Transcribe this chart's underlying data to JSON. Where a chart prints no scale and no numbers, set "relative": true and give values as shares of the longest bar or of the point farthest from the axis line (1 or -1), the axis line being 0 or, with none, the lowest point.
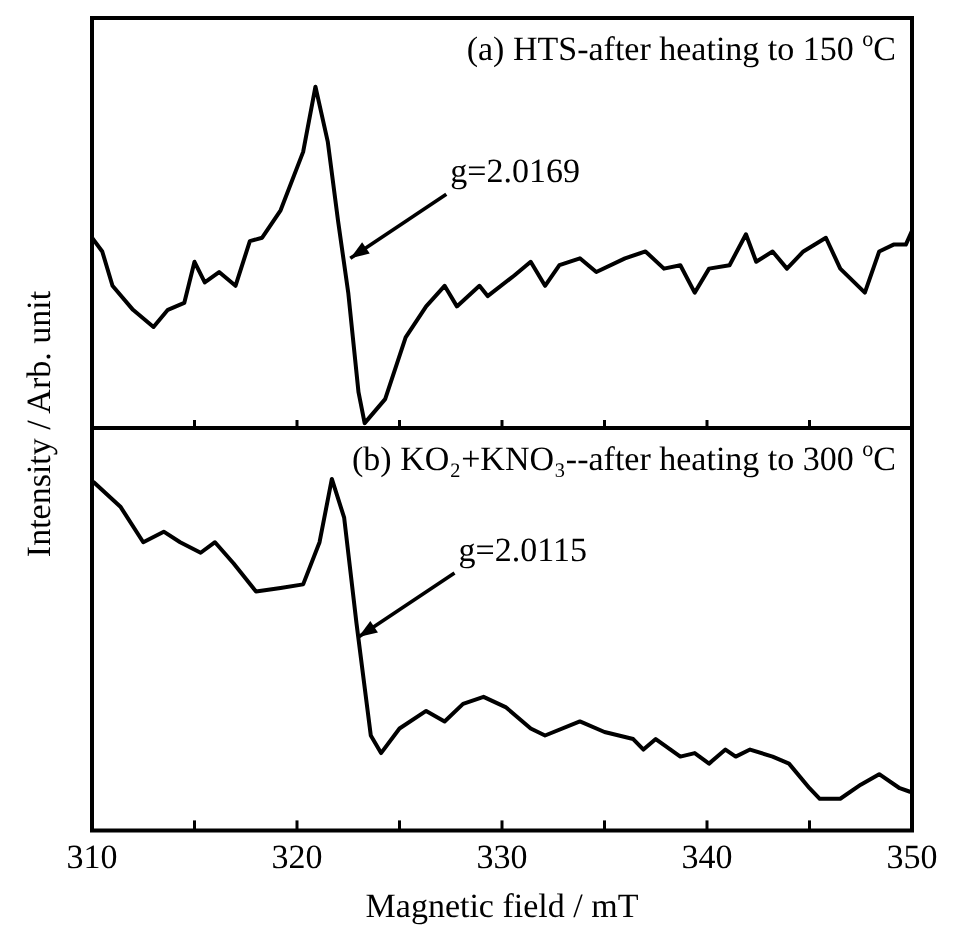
{
  "chart_data": [
    {
      "type": "line",
      "title": "(a) HTS-after heating to 150 $^{o}$C",
      "ylabel": "Intensity / Arb. unit",
      "relative": true,
      "tick_labels": false,
      "marker": "none",
      "color": "#000000",
      "xlim": [
        310,
        350
      ],
      "xticks": [
        310,
        {
          "value": 315,
          "label": null
        },
        320,
        {
          "value": 325,
          "label": null
        },
        330,
        {
          "value": 335,
          "label": null
        },
        340,
        {
          "value": 345,
          "label": null
        },
        350
      ],
      "x": [
        310,
        310.5,
        311,
        312,
        313,
        313.7,
        314.5,
        315,
        315.5,
        316.2,
        317,
        317.7,
        318.3,
        319.2,
        320.3,
        320.9,
        321.5,
        322,
        322.5,
        323,
        323.3,
        324.3,
        325.3,
        326.3,
        327.2,
        327.8,
        328.9,
        329.3,
        330.6,
        331.4,
        332.1,
        332.8,
        333.8,
        334.6,
        336,
        337,
        337.9,
        338.7,
        339.4,
        340.1,
        341.1,
        341.9,
        342.4,
        343.2,
        343.9,
        344.7,
        345.8,
        346.5,
        347.7,
        348.4,
        349.1,
        349.7,
        350
      ],
      "values": [
        0.56,
        0.52,
        0.42,
        0.35,
        0.3,
        0.35,
        0.37,
        0.49,
        0.43,
        0.46,
        0.42,
        0.55,
        0.56,
        0.64,
        0.81,
        1,
        0.84,
        0.61,
        0.4,
        0.11,
        0.02,
        0.09,
        0.27,
        0.36,
        0.42,
        0.36,
        0.42,
        0.39,
        0.45,
        0.49,
        0.42,
        0.48,
        0.5,
        0.46,
        0.5,
        0.52,
        0.47,
        0.48,
        0.4,
        0.47,
        0.48,
        0.57,
        0.49,
        0.52,
        0.47,
        0.52,
        0.56,
        0.47,
        0.4,
        0.52,
        0.54,
        0.54,
        0.58
      ],
      "annotations": [
        {
          "text": "g=2.0169",
          "x": 322.6,
          "y": 0.5
        }
      ]
    },
    {
      "type": "line",
      "title": "(b) KO₂+KNO₃--after heating to 300 $^{o}$C",
      "xlabel": "Magnetic field / mT",
      "relative": true,
      "tick_labels": "x",
      "marker": "none",
      "color": "#000000",
      "xlim": [
        310,
        350
      ],
      "xticks": [
        310,
        {
          "value": 315,
          "label": null
        },
        320,
        {
          "value": 325,
          "label": null
        },
        330,
        {
          "value": 335,
          "label": null
        },
        340,
        {
          "value": 345,
          "label": null
        },
        350
      ],
      "x": [
        310.1,
        311.4,
        312.5,
        313.5,
        314.3,
        315.3,
        316,
        316.9,
        318,
        319.2,
        320.3,
        321.1,
        321.7,
        322.3,
        322.9,
        323.6,
        324.1,
        325,
        326.3,
        327.2,
        328.1,
        329.1,
        330.2,
        331.4,
        332.1,
        333.8,
        335,
        336.4,
        336.9,
        337.5,
        338.7,
        339.4,
        340.1,
        340.9,
        341.4,
        342.1,
        343.2,
        344,
        345,
        345.5,
        346.5,
        347.5,
        348.4,
        349.4,
        349.9
      ],
      "values": [
        0.99,
        0.92,
        0.82,
        0.85,
        0.82,
        0.79,
        0.82,
        0.76,
        0.68,
        0.69,
        0.7,
        0.82,
        1,
        0.89,
        0.59,
        0.27,
        0.22,
        0.29,
        0.34,
        0.31,
        0.36,
        0.38,
        0.35,
        0.29,
        0.27,
        0.31,
        0.28,
        0.26,
        0.23,
        0.26,
        0.21,
        0.22,
        0.19,
        0.23,
        0.21,
        0.23,
        0.21,
        0.19,
        0.12,
        0.09,
        0.09,
        0.13,
        0.16,
        0.12,
        0.11
      ],
      "annotations": [
        {
          "text": "g=2.0115",
          "x": 323,
          "y": 0.55
        }
      ]
    }
  ]
}
